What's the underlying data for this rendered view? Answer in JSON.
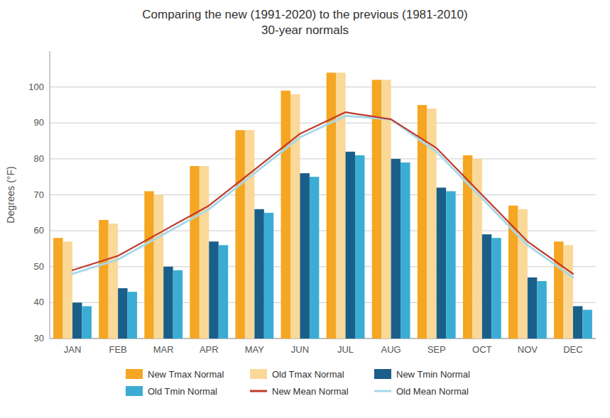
{
  "chart_data": {
    "type": "bar",
    "title": "Comparing the new (1991-2020) to the previous (1981-2010)",
    "subtitle": "30-year normals",
    "ylabel": "Degrees (°F)",
    "categories": [
      "JAN",
      "FEB",
      "MAR",
      "APR",
      "MAY",
      "JUN",
      "JUL",
      "AUG",
      "SEP",
      "OCT",
      "NOV",
      "DEC"
    ],
    "series": [
      {
        "name": "New Tmax Normal",
        "type": "bar",
        "color": "#F5A623",
        "values": [
          58,
          63,
          71,
          78,
          88,
          99,
          104,
          102,
          95,
          81,
          67,
          57
        ]
      },
      {
        "name": "Old Tmax Normal",
        "type": "bar",
        "color": "#FAD898",
        "values": [
          57,
          62,
          70,
          78,
          88,
          98,
          104,
          102,
          94,
          80,
          66,
          56
        ]
      },
      {
        "name": "New Tmin Normal",
        "type": "bar",
        "color": "#1A5F8A",
        "values": [
          40,
          44,
          50,
          57,
          66,
          76,
          82,
          80,
          72,
          59,
          47,
          39
        ]
      },
      {
        "name": "Old Tmin Normal",
        "type": "bar",
        "color": "#3BADD4",
        "values": [
          39,
          43,
          49,
          56,
          65,
          75,
          81,
          79,
          71,
          58,
          46,
          38
        ]
      },
      {
        "name": "New Mean Normal",
        "type": "line",
        "color": "#C0392B",
        "values": [
          49,
          53,
          60,
          67,
          77,
          87,
          93,
          91,
          83,
          70,
          57,
          48
        ]
      },
      {
        "name": "Old Mean Normal",
        "type": "line",
        "color": "#A8D8EA",
        "values": [
          48,
          52,
          59,
          66,
          76,
          86,
          92,
          91,
          82,
          69,
          56,
          47
        ]
      }
    ],
    "ylim": [
      30,
      110
    ],
    "yticks": [
      30,
      40,
      50,
      60,
      70,
      80,
      90,
      100
    ],
    "grid": true,
    "legend": "bottom"
  }
}
